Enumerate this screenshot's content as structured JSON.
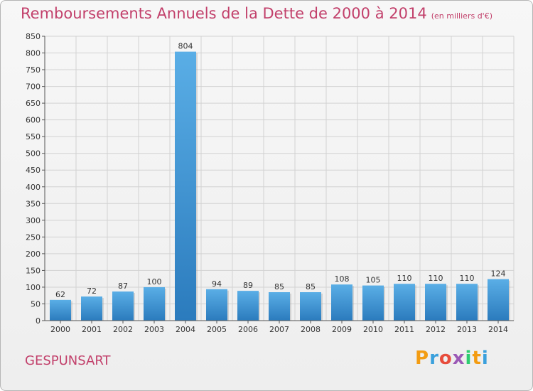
{
  "chart_data": {
    "type": "bar",
    "title": "Remboursements Annuels de la Dette de 2000 à 2014",
    "unit_note": "(en milliers d'€)",
    "categories": [
      "2000",
      "2001",
      "2002",
      "2003",
      "2004",
      "2005",
      "2006",
      "2007",
      "2008",
      "2009",
      "2010",
      "2011",
      "2012",
      "2013",
      "2014"
    ],
    "values": [
      62,
      72,
      87,
      100,
      804,
      94,
      89,
      85,
      85,
      108,
      105,
      110,
      110,
      110,
      124
    ],
    "ylim": [
      0,
      850
    ],
    "yticks": [
      0,
      50,
      100,
      150,
      200,
      250,
      300,
      350,
      400,
      450,
      500,
      550,
      600,
      650,
      700,
      750,
      800,
      850
    ],
    "grid": true,
    "colors": {
      "bar_top": "#5aaee6",
      "bar_bottom": "#2b7bbd",
      "title": "#c2406b",
      "grid": "#d2d2d2"
    }
  },
  "footer": {
    "commune": "GESPUNSART",
    "logo_text": "Proxiti",
    "logo_colors": [
      "#f39c12",
      "#3aa0dc",
      "#e74c3c",
      "#9b59b6",
      "#2ecc71",
      "#f39c12",
      "#3aa0dc"
    ]
  }
}
